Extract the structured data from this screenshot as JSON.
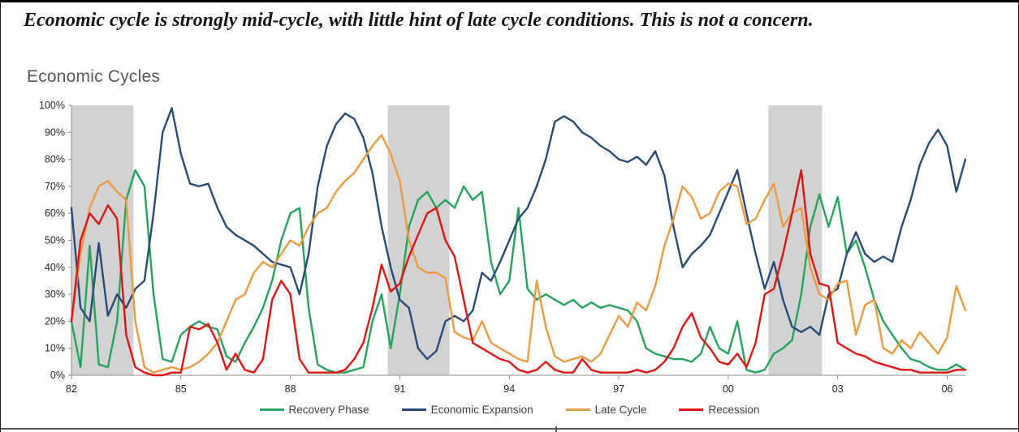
{
  "headline": "Economic cycle is strongly mid-cycle, with little hint of late cycle conditions. This is not a concern.",
  "chart_title": "Economic Cycles",
  "chart_data": {
    "type": "line",
    "title": "Economic Cycles",
    "xlabel": "",
    "ylabel": "",
    "grid": false,
    "legend_position": "bottom",
    "ylim": [
      0,
      100
    ],
    "x_start": 1982,
    "x_step": 0.25,
    "x_end": 2006.5,
    "shade_color": "#d2d2d2",
    "shaded_regions": [
      {
        "from": 1982.0,
        "to": 1983.7
      },
      {
        "from": 1990.67,
        "to": 1992.36
      },
      {
        "from": 2001.1,
        "to": 2002.57
      }
    ],
    "y_ticks": [
      {
        "v": 0,
        "label": "0%"
      },
      {
        "v": 10,
        "label": "10%"
      },
      {
        "v": 20,
        "label": "20%"
      },
      {
        "v": 30,
        "label": "30%"
      },
      {
        "v": 40,
        "label": "40%"
      },
      {
        "v": 50,
        "label": "50%"
      },
      {
        "v": 60,
        "label": "60%"
      },
      {
        "v": 70,
        "label": "70%"
      },
      {
        "v": 80,
        "label": "80%"
      },
      {
        "v": 90,
        "label": "90%"
      },
      {
        "v": 100,
        "label": "100%"
      }
    ],
    "x_ticks": [
      {
        "v": 1982,
        "label": "82"
      },
      {
        "v": 1985,
        "label": "85"
      },
      {
        "v": 1988,
        "label": "88"
      },
      {
        "v": 1991,
        "label": "91"
      },
      {
        "v": 1994,
        "label": "94"
      },
      {
        "v": 1997,
        "label": "97"
      },
      {
        "v": 2000,
        "label": "00"
      },
      {
        "v": 2003,
        "label": "03"
      },
      {
        "v": 2006,
        "label": "06"
      }
    ],
    "series": [
      {
        "name": "Recovery Phase",
        "color": "#27a35e",
        "values": [
          20,
          3,
          48,
          4,
          3,
          20,
          65,
          76,
          70,
          30,
          6,
          5,
          15,
          18,
          20,
          18,
          17,
          7,
          5,
          12,
          18,
          25,
          35,
          50,
          60,
          62,
          25,
          4,
          2,
          1,
          1,
          2,
          3,
          20,
          30,
          10,
          30,
          55,
          65,
          68,
          62,
          65,
          62,
          70,
          65,
          68,
          42,
          30,
          35,
          62,
          32,
          28,
          30,
          28,
          26,
          28,
          25,
          27,
          25,
          26,
          25,
          24,
          20,
          10,
          8,
          7,
          6,
          6,
          5,
          8,
          18,
          10,
          8,
          20,
          2,
          1,
          2,
          8,
          10,
          13,
          30,
          55,
          67,
          55,
          66,
          45,
          50,
          40,
          28,
          20,
          15,
          10,
          6,
          5,
          3,
          2,
          2,
          4,
          2
        ]
      },
      {
        "name": "Economic Expansion",
        "color": "#2b4b77",
        "values": [
          62,
          25,
          20,
          49,
          22,
          30,
          25,
          32,
          35,
          60,
          90,
          99,
          82,
          71,
          70,
          71,
          62,
          55,
          52,
          50,
          48,
          45,
          42,
          41,
          40,
          30,
          45,
          70,
          85,
          93,
          97,
          95,
          88,
          75,
          55,
          40,
          28,
          25,
          10,
          6,
          9,
          20,
          22,
          20,
          24,
          38,
          35,
          42,
          50,
          58,
          62,
          70,
          80,
          94,
          96,
          94,
          90,
          88,
          85,
          83,
          80,
          79,
          81,
          78,
          83,
          74,
          55,
          40,
          45,
          48,
          52,
          60,
          68,
          76,
          60,
          45,
          32,
          42,
          28,
          18,
          16,
          18,
          15,
          30,
          32,
          45,
          53,
          45,
          42,
          44,
          42,
          55,
          65,
          78,
          86,
          91,
          85,
          68,
          80
        ]
      },
      {
        "name": "Late Cycle",
        "color": "#ec9b43",
        "values": [
          20,
          45,
          62,
          70,
          72,
          68,
          65,
          20,
          3,
          1,
          2,
          3,
          2,
          3,
          5,
          8,
          12,
          20,
          28,
          30,
          38,
          42,
          40,
          45,
          50,
          48,
          55,
          60,
          62,
          68,
          72,
          75,
          80,
          85,
          89,
          82,
          72,
          50,
          40,
          38,
          38,
          36,
          16,
          14,
          13,
          20,
          12,
          10,
          8,
          6,
          5,
          35,
          18,
          7,
          5,
          6,
          7,
          5,
          8,
          15,
          22,
          18,
          27,
          24,
          33,
          48,
          58,
          70,
          66,
          58,
          60,
          68,
          71,
          70,
          56,
          58,
          65,
          71,
          55,
          60,
          62,
          40,
          30,
          28,
          34,
          35,
          15,
          26,
          28,
          10,
          8,
          13,
          10,
          16,
          12,
          8,
          14,
          33,
          24
        ]
      },
      {
        "name": "Recession",
        "color": "#e01414",
        "values": [
          20,
          50,
          60,
          56,
          63,
          58,
          15,
          3,
          1,
          0,
          0,
          1,
          1,
          18,
          17,
          19,
          12,
          2,
          8,
          2,
          1,
          6,
          28,
          35,
          30,
          6,
          1,
          1,
          1,
          1,
          2,
          6,
          12,
          25,
          41,
          31,
          34,
          44,
          52,
          60,
          62,
          50,
          44,
          28,
          12,
          10,
          8,
          6,
          5,
          2,
          1,
          2,
          5,
          2,
          1,
          1,
          6,
          2,
          1,
          1,
          1,
          1,
          2,
          1,
          2,
          5,
          10,
          18,
          23,
          14,
          10,
          5,
          4,
          8,
          3,
          12,
          30,
          32,
          45,
          60,
          76,
          45,
          34,
          33,
          12,
          10,
          8,
          7,
          5,
          4,
          3,
          2,
          2,
          1,
          1,
          1,
          1,
          2,
          2
        ]
      }
    ]
  }
}
